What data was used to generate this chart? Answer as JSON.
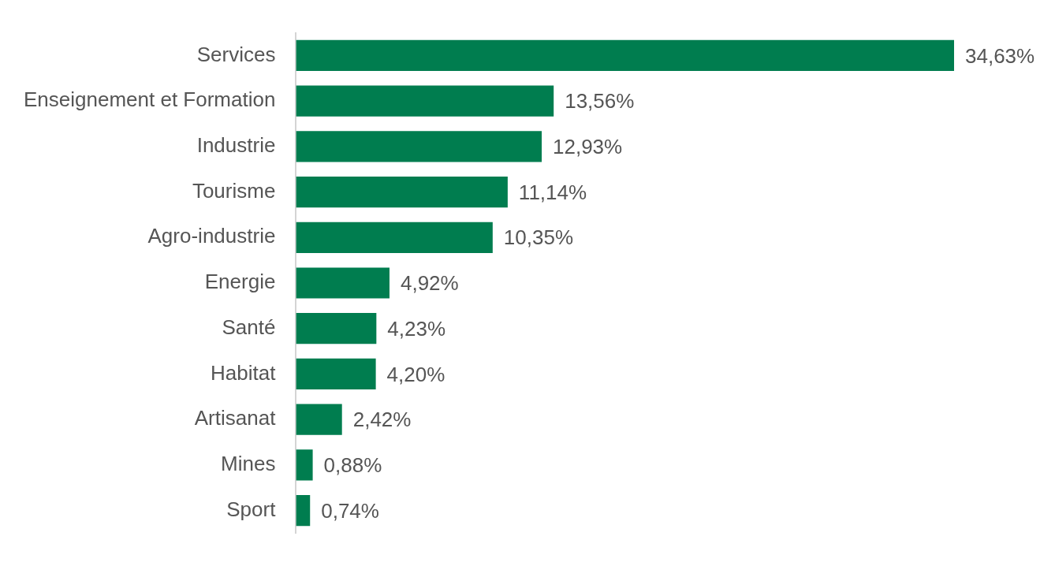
{
  "chart_data": {
    "type": "bar",
    "orientation": "horizontal",
    "categories": [
      "Services",
      "Enseignement et Formation",
      "Industrie",
      "Tourisme",
      "Agro-industrie",
      "Energie",
      "Santé",
      "Habitat",
      "Artisanat",
      "Mines",
      "Sport"
    ],
    "values": [
      34.63,
      13.56,
      12.93,
      11.14,
      10.35,
      4.92,
      4.23,
      4.2,
      2.42,
      0.88,
      0.74
    ],
    "value_labels": [
      "34,63%",
      "13,56%",
      "12,93%",
      "11,14%",
      "10,35%",
      "4,92%",
      "4,23%",
      "4,20%",
      "2,42%",
      "0,88%",
      "0,74%"
    ],
    "color": "#007d4f"
  }
}
